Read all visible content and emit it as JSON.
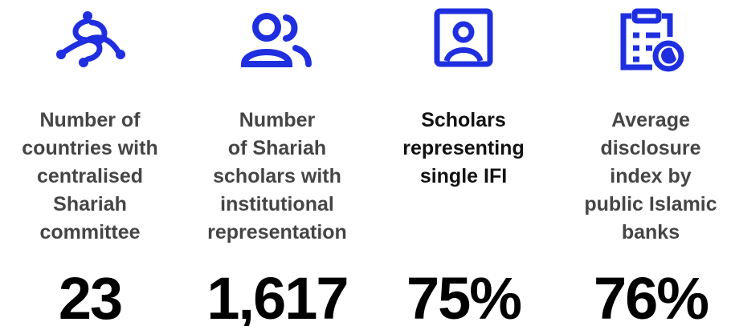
{
  "items": [
    {
      "label_lines": [
        "Number of",
        "countries with",
        "centralised",
        "Shariah",
        "committee"
      ],
      "value": "23"
    },
    {
      "label_lines": [
        "Number",
        "of Shariah",
        "scholars with",
        "institutional",
        "representation"
      ],
      "value": "1,617"
    },
    {
      "label_lines": [
        "Scholars",
        "representing",
        "single IFI"
      ],
      "value": "75%"
    },
    {
      "label_lines": [
        "Average",
        "disclosure",
        "index by",
        "public Islamic",
        "banks"
      ],
      "value": "76%"
    }
  ]
}
